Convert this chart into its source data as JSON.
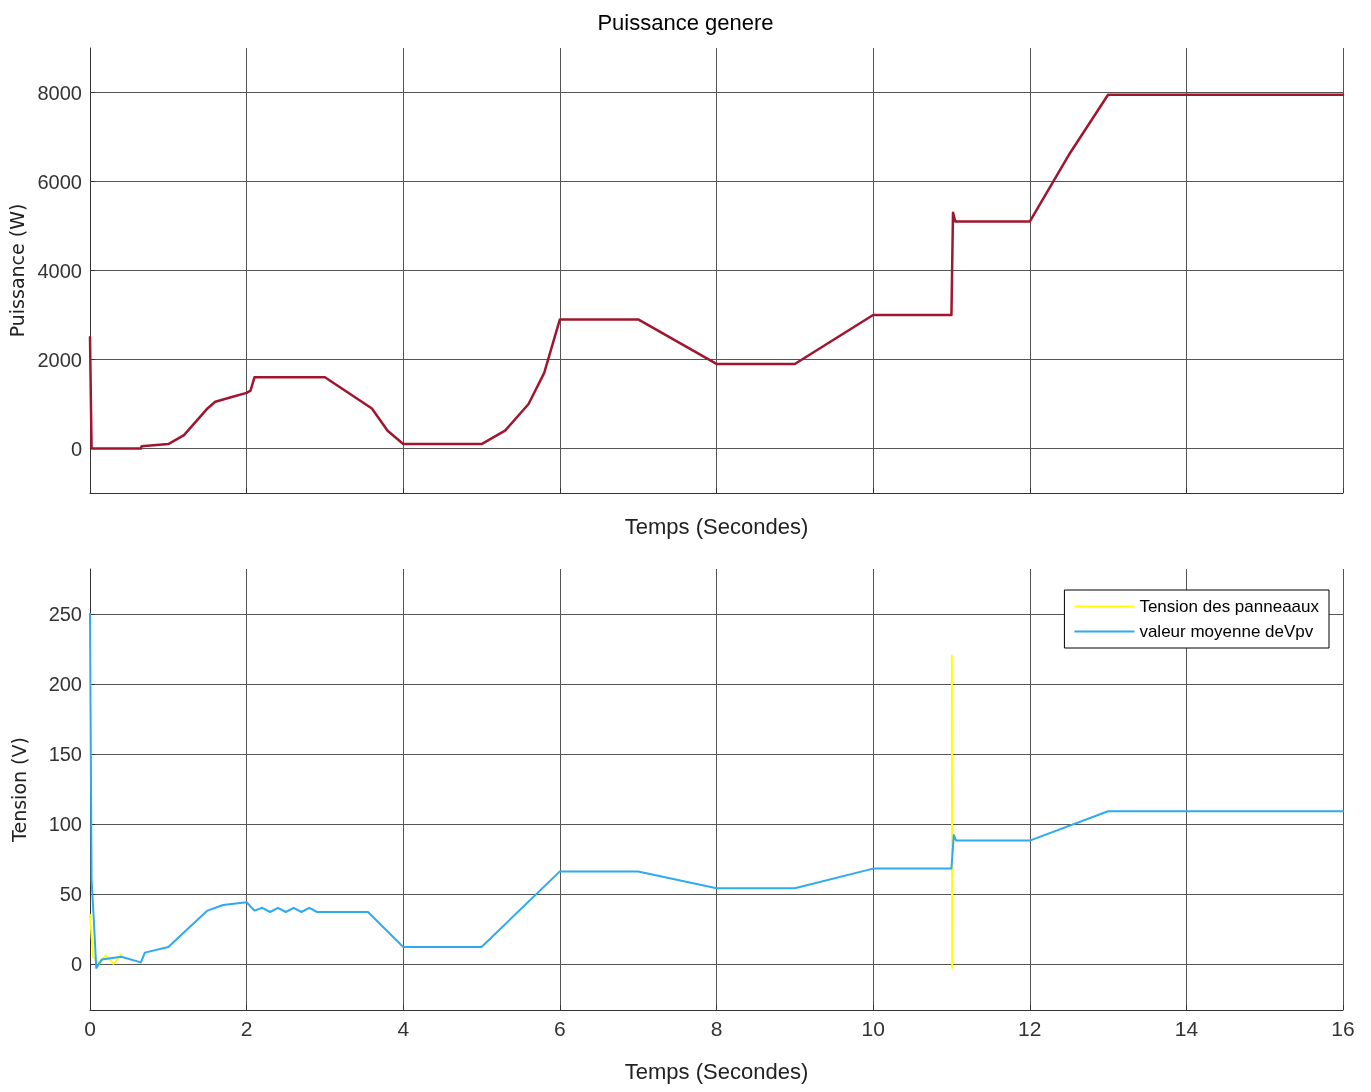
{
  "chart_data": [
    {
      "type": "line",
      "title": "Puissance genere",
      "xlabel": "Temps (Secondes)",
      "ylabel": "Puissance (W)",
      "xlim": [
        0,
        16
      ],
      "xticks": [
        0,
        2,
        4,
        6,
        8,
        10,
        12,
        14,
        16
      ],
      "ylim": [
        -1000,
        9000
      ],
      "yticks": [
        0,
        2000,
        4000,
        6000,
        8000
      ],
      "tick_labels": "y",
      "grid": true,
      "legend": false,
      "marker": "none",
      "line_style": "solid",
      "series": [
        {
          "color": "#a0162e",
          "x": [
            0,
            0.02,
            0.65,
            0.66,
            1,
            1.2,
            1.4,
            1.5,
            1.6,
            1.8,
            2,
            2.05,
            2.1,
            3,
            3.6,
            3.8,
            4,
            5,
            5.3,
            5.6,
            5.8,
            6,
            7,
            8,
            9,
            10,
            11,
            11.02,
            11.05,
            12,
            12.5,
            13,
            16
          ],
          "values": [
            2500,
            0,
            0,
            50,
            100,
            300,
            700,
            900,
            1050,
            1150,
            1250,
            1300,
            1600,
            1600,
            900,
            400,
            100,
            100,
            400,
            1000,
            1700,
            2900,
            2900,
            1900,
            1900,
            3000,
            3000,
            5300,
            5100,
            5100,
            6600,
            7950,
            7950
          ]
        }
      ]
    },
    {
      "type": "line",
      "xlabel": "Temps (Secondes)",
      "ylabel": "Tension (V)",
      "xlim": [
        0,
        16
      ],
      "xticks": [
        0,
        2,
        4,
        6,
        8,
        10,
        12,
        14,
        16
      ],
      "ylim": [
        -33,
        282
      ],
      "yticks": [
        0,
        50,
        100,
        150,
        200,
        250
      ],
      "grid": true,
      "legend": "top right",
      "marker": "none",
      "line_style": "solid",
      "series": [
        {
          "name": "Tension des panneaaux",
          "color": "#ffff00",
          "x": [
            0,
            0.04,
            0.12,
            0.2,
            0.3,
            0.4,
            0.5,
            11.005,
            11.01
          ],
          "values": [
            35,
            5,
            0,
            6,
            0,
            7,
            null,
            220,
            -3
          ]
        },
        {
          "name": "valeur moyenne deVpv",
          "color": "#2eaaf0",
          "x": [
            0,
            0.02,
            0.05,
            0.08,
            0.15,
            0.4,
            0.65,
            0.7,
            1,
            1.5,
            1.7,
            2,
            2.1,
            2.2,
            2.3,
            2.4,
            2.5,
            2.6,
            2.7,
            2.8,
            2.9,
            3,
            3.55,
            4,
            5,
            6,
            7,
            8,
            9,
            10,
            11,
            11.03,
            11.06,
            12,
            13,
            16
          ],
          "values": [
            250,
            60,
            30,
            -3,
            3,
            5,
            1,
            8,
            12,
            38,
            42,
            44,
            38,
            40,
            37,
            40,
            37,
            40,
            37,
            40,
            37,
            37,
            37,
            12,
            12,
            66,
            66,
            54,
            54,
            68,
            68,
            92,
            88,
            88,
            109,
            109
          ]
        }
      ]
    }
  ]
}
